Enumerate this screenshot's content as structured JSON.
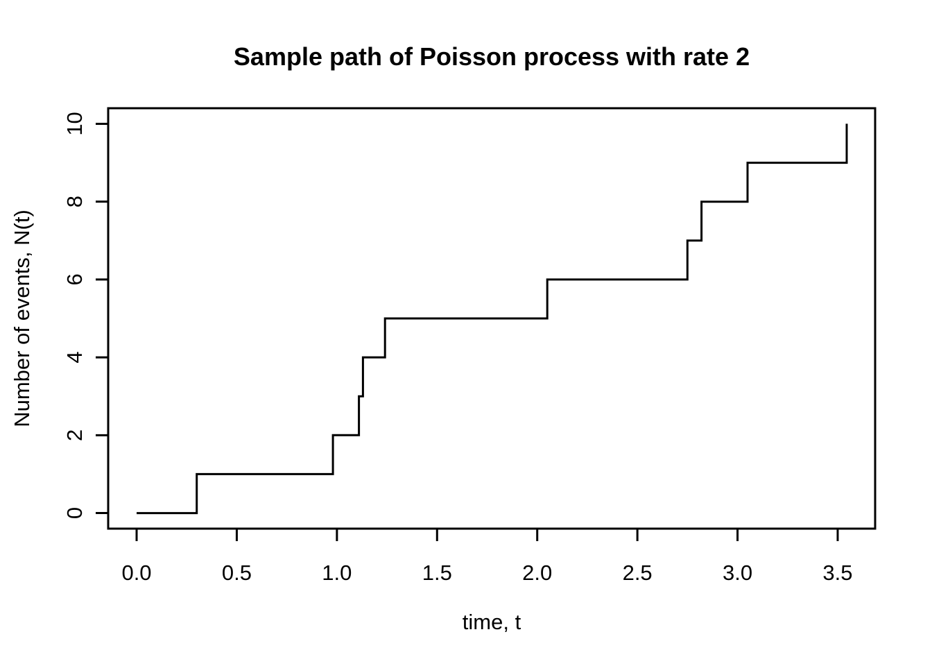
{
  "figure": {
    "background": "#ffffff",
    "line_color": "#000000",
    "text_color": "#000000"
  },
  "chart_data": {
    "type": "line",
    "subtype": "step",
    "step_style": "s",
    "title": "Sample path of Poisson process with rate 2",
    "xlabel": "time, t",
    "ylabel": "Number of events, N(t)",
    "x": [
      0,
      0.3,
      0.98,
      1.11,
      1.13,
      1.24,
      2.05,
      2.75,
      2.82,
      3.05,
      3.545
    ],
    "y": [
      0,
      1,
      2,
      3,
      4,
      5,
      6,
      7,
      8,
      9,
      10
    ],
    "event_times": [
      0.3,
      0.98,
      1.11,
      1.13,
      1.24,
      2.05,
      2.75,
      2.82,
      3.05,
      3.545
    ],
    "xlim": [
      -0.142,
      3.687
    ],
    "ylim": [
      -0.4,
      10.4
    ],
    "x_ticks": {
      "values": [
        0,
        0.5,
        1.0,
        1.5,
        2.0,
        2.5,
        3.0,
        3.5
      ],
      "labels": [
        "0.0",
        "0.5",
        "1.0",
        "1.5",
        "2.0",
        "2.5",
        "3.0",
        "3.5"
      ]
    },
    "y_ticks": {
      "values": [
        0,
        2,
        4,
        6,
        8,
        10
      ],
      "labels": [
        "0",
        "2",
        "4",
        "6",
        "8",
        "10"
      ]
    },
    "grid": false,
    "legend": null,
    "line_width": 3,
    "line_color": "#000000"
  }
}
